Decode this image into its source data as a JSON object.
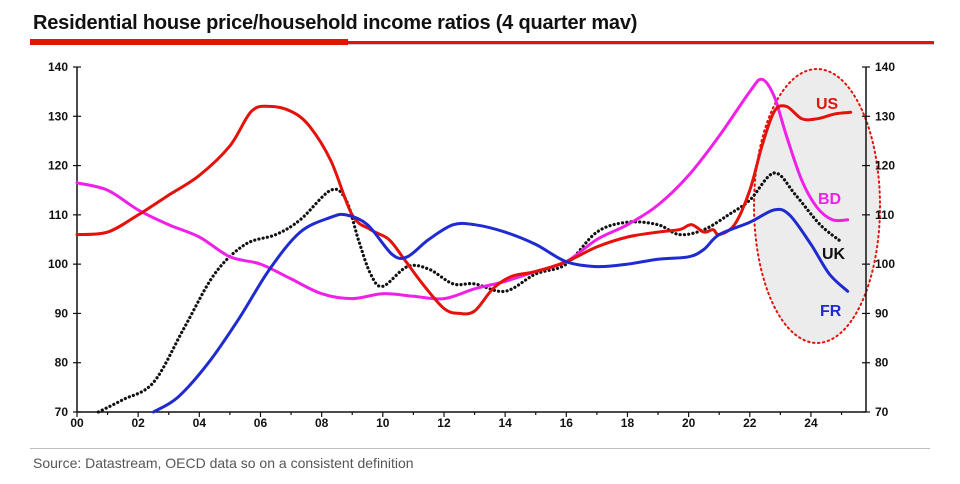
{
  "title": "Residential house price/household income ratios (4 quarter mav)",
  "source": "Source: Datastream, OECD data so on a consistent definition",
  "colors": {
    "US": "#e3120b",
    "BD": "#f020e8",
    "UK": "#111111",
    "FR": "#1f2bd0",
    "brand": "#e3120b",
    "ellipse_fill": "#ececec"
  },
  "chart_data": {
    "type": "line",
    "title": "Residential house price/household income ratios (4 quarter mav)",
    "xlabel": "",
    "ylabel": "",
    "xlim": [
      2000,
      2025.8
    ],
    "ylim": [
      70,
      140
    ],
    "x_ticks": [
      2000,
      2002,
      2004,
      2006,
      2008,
      2010,
      2012,
      2014,
      2016,
      2018,
      2020,
      2022,
      2024
    ],
    "x_tick_labels": [
      "00",
      "02",
      "04",
      "06",
      "08",
      "10",
      "12",
      "14",
      "16",
      "18",
      "20",
      "22",
      "24"
    ],
    "y_ticks": [
      70,
      80,
      90,
      100,
      110,
      120,
      130,
      140
    ],
    "y_tick_labels": [
      "70",
      "80",
      "90",
      "100",
      "110",
      "120",
      "130",
      "140"
    ],
    "grid": false,
    "legend": "direct labels at right",
    "annotations": [
      "dotted ellipse highlighting 2022-2025"
    ],
    "series": [
      {
        "name": "US",
        "style": "solid",
        "points": [
          [
            2000,
            106
          ],
          [
            2001,
            106.5
          ],
          [
            2002,
            110
          ],
          [
            2003,
            114
          ],
          [
            2004,
            118
          ],
          [
            2005,
            124
          ],
          [
            2005.7,
            131
          ],
          [
            2006.3,
            132
          ],
          [
            2007,
            131
          ],
          [
            2007.6,
            128
          ],
          [
            2008.3,
            121
          ],
          [
            2009,
            110
          ],
          [
            2009.6,
            107
          ],
          [
            2010.2,
            105
          ],
          [
            2010.7,
            101
          ],
          [
            2011.3,
            96
          ],
          [
            2012,
            91
          ],
          [
            2012.5,
            90
          ],
          [
            2013,
            90.5
          ],
          [
            2013.6,
            95
          ],
          [
            2014.2,
            97.5
          ],
          [
            2015,
            98.5
          ],
          [
            2016,
            100.5
          ],
          [
            2017,
            103.5
          ],
          [
            2018,
            105.5
          ],
          [
            2019,
            106.5
          ],
          [
            2019.7,
            107
          ],
          [
            2020.1,
            108
          ],
          [
            2020.5,
            106.5
          ],
          [
            2020.8,
            107
          ],
          [
            2021,
            106
          ],
          [
            2021.5,
            108
          ],
          [
            2022,
            115
          ],
          [
            2022.4,
            124
          ],
          [
            2022.8,
            131
          ],
          [
            2023.2,
            132
          ],
          [
            2023.7,
            129.5
          ],
          [
            2024.2,
            129.5
          ],
          [
            2024.8,
            130.5
          ],
          [
            2025.3,
            130.8
          ]
        ]
      },
      {
        "name": "BD",
        "style": "solid",
        "points": [
          [
            2000,
            116.5
          ],
          [
            2001,
            115
          ],
          [
            2002,
            111
          ],
          [
            2003,
            108
          ],
          [
            2004,
            105.5
          ],
          [
            2005,
            101.5
          ],
          [
            2006,
            100
          ],
          [
            2007,
            97
          ],
          [
            2008,
            94
          ],
          [
            2009,
            93
          ],
          [
            2010,
            94
          ],
          [
            2011,
            93.5
          ],
          [
            2012,
            93
          ],
          [
            2013,
            95
          ],
          [
            2014,
            96.5
          ],
          [
            2015,
            98.5
          ],
          [
            2016,
            100.5
          ],
          [
            2017,
            105
          ],
          [
            2018,
            108
          ],
          [
            2019,
            112
          ],
          [
            2020,
            118
          ],
          [
            2021,
            126
          ],
          [
            2022,
            135
          ],
          [
            2022.4,
            137.5
          ],
          [
            2022.8,
            134
          ],
          [
            2023.2,
            126
          ],
          [
            2023.7,
            117
          ],
          [
            2024.2,
            111.5
          ],
          [
            2024.7,
            109
          ],
          [
            2025.2,
            109
          ]
        ]
      },
      {
        "name": "UK",
        "style": "dotted",
        "points": [
          [
            2000.7,
            70
          ],
          [
            2001.5,
            72.5
          ],
          [
            2002.5,
            76
          ],
          [
            2003.5,
            87
          ],
          [
            2004.5,
            98
          ],
          [
            2005.5,
            104
          ],
          [
            2006.5,
            106
          ],
          [
            2007.3,
            109
          ],
          [
            2008.3,
            115
          ],
          [
            2008.8,
            113
          ],
          [
            2009.2,
            105
          ],
          [
            2009.6,
            98
          ],
          [
            2010,
            95.5
          ],
          [
            2010.8,
            99.5
          ],
          [
            2011.5,
            99
          ],
          [
            2012.3,
            96
          ],
          [
            2013,
            96
          ],
          [
            2014,
            94.5
          ],
          [
            2015,
            98
          ],
          [
            2016,
            100
          ],
          [
            2017,
            106.5
          ],
          [
            2018,
            108.5
          ],
          [
            2019,
            108
          ],
          [
            2019.7,
            106
          ],
          [
            2020.5,
            107
          ],
          [
            2021.3,
            110
          ],
          [
            2022,
            113
          ],
          [
            2022.8,
            118.5
          ],
          [
            2023.5,
            114
          ],
          [
            2024.3,
            108
          ],
          [
            2025,
            104.5
          ]
        ]
      },
      {
        "name": "FR",
        "style": "solid",
        "points": [
          [
            2002.5,
            70
          ],
          [
            2003.3,
            73
          ],
          [
            2004.3,
            80
          ],
          [
            2005.3,
            89
          ],
          [
            2006.3,
            99
          ],
          [
            2007.3,
            106.5
          ],
          [
            2008.3,
            109.5
          ],
          [
            2008.8,
            110
          ],
          [
            2009.5,
            108
          ],
          [
            2010.3,
            102
          ],
          [
            2010.8,
            101.5
          ],
          [
            2011.5,
            105
          ],
          [
            2012.3,
            108
          ],
          [
            2013,
            108
          ],
          [
            2014,
            106.5
          ],
          [
            2015,
            104
          ],
          [
            2016,
            100.5
          ],
          [
            2017,
            99.5
          ],
          [
            2018,
            100
          ],
          [
            2019,
            101
          ],
          [
            2020,
            101.5
          ],
          [
            2020.5,
            103
          ],
          [
            2021,
            106
          ],
          [
            2022,
            108.5
          ],
          [
            2022.8,
            111
          ],
          [
            2023.3,
            110
          ],
          [
            2024,
            104
          ],
          [
            2024.6,
            98
          ],
          [
            2025.2,
            94.5
          ]
        ]
      }
    ]
  }
}
